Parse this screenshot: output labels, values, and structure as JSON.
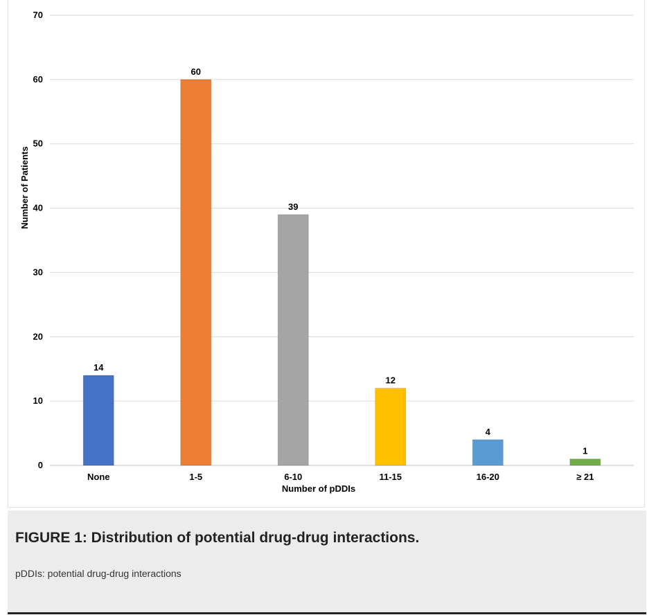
{
  "figure": {
    "title": "FIGURE 1: Distribution of potential drug-drug interactions.",
    "note": "pDDIs: potential drug-drug interactions"
  },
  "chart_data": {
    "type": "bar",
    "categories": [
      "None",
      "1-5",
      "6-10",
      "11-15",
      "16-20",
      "≥ 21"
    ],
    "values": [
      14,
      60,
      39,
      12,
      4,
      1
    ],
    "data_labels": [
      "14",
      "60",
      "39",
      "12",
      "4",
      "1"
    ],
    "colors": [
      "#4472c4",
      "#ed7d31",
      "#a5a5a5",
      "#ffc000",
      "#5b9bd5",
      "#70ad47"
    ],
    "xlabel": "Number of pDDIs",
    "ylabel": "Number of Patients",
    "ylim": [
      0,
      70
    ],
    "yticks": [
      0,
      10,
      20,
      30,
      40,
      50,
      60,
      70
    ],
    "ytick_labels": [
      "0",
      "10",
      "20",
      "30",
      "40",
      "50",
      "60",
      "70"
    ],
    "grid": true,
    "legend": "none"
  }
}
